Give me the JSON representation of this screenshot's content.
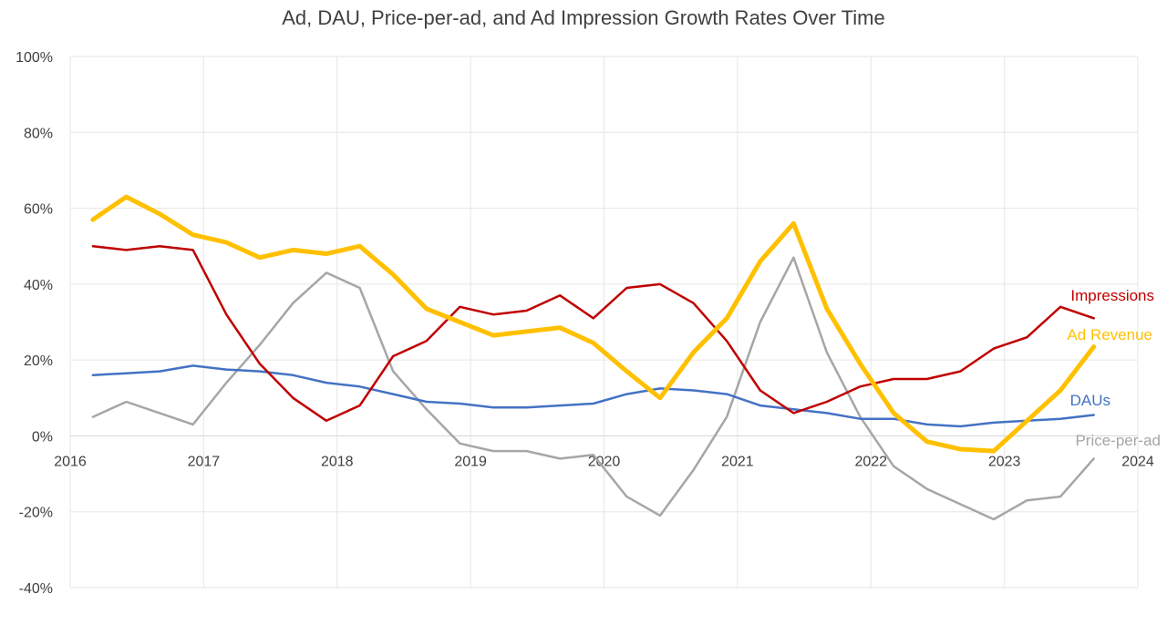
{
  "chart_data": {
    "type": "line",
    "title": "Ad, DAU, Price-per-ad, and Ad Impression Growth Rates Over Time",
    "xlabel": "",
    "ylabel": "",
    "xlim": [
      2016,
      2024
    ],
    "ylim": [
      -40,
      100
    ],
    "y_ticks": [
      -40,
      -20,
      0,
      20,
      40,
      60,
      80,
      100
    ],
    "y_tick_labels": [
      "-40%",
      "-20%",
      "0%",
      "20%",
      "40%",
      "60%",
      "80%",
      "100%"
    ],
    "x_ticks": [
      2016,
      2017,
      2018,
      2019,
      2020,
      2021,
      2022,
      2023,
      2024
    ],
    "x_tick_labels": [
      "2016",
      "2017",
      "2018",
      "2019",
      "2020",
      "2021",
      "2022",
      "2023",
      "2024"
    ],
    "grid": true,
    "legend": "inline labels at right end of each series",
    "x": [
      2016.17,
      2016.42,
      2016.67,
      2016.92,
      2017.17,
      2017.42,
      2017.67,
      2017.92,
      2018.17,
      2018.42,
      2018.67,
      2018.92,
      2019.17,
      2019.42,
      2019.67,
      2019.92,
      2020.17,
      2020.42,
      2020.67,
      2020.92,
      2021.17,
      2021.42,
      2021.67,
      2021.92,
      2022.17,
      2022.42,
      2022.67,
      2022.92,
      2023.17,
      2023.42,
      2023.67
    ],
    "series": [
      {
        "name": "Impressions",
        "color": "#c00000",
        "width": 2.5,
        "values": [
          50,
          49,
          50,
          49,
          32,
          19,
          10,
          4,
          8,
          21,
          25,
          34,
          32,
          33,
          37,
          31,
          39,
          40,
          35,
          25,
          12,
          6,
          9,
          13,
          15,
          15,
          17,
          23,
          26,
          34,
          31
        ]
      },
      {
        "name": "Ad Revenue",
        "color": "#ffc000",
        "width": 5,
        "values": [
          57,
          63,
          58.5,
          53,
          51,
          47,
          49,
          48,
          50,
          42.5,
          33.5,
          30,
          26.5,
          27.5,
          28.5,
          24.5,
          17,
          10,
          22,
          31,
          46,
          56,
          33.5,
          19,
          6,
          -1.5,
          -3.5,
          -4,
          4,
          12,
          23.5
        ]
      },
      {
        "name": "DAUs",
        "color": "#4472c4",
        "width": 2.5,
        "values": [
          16,
          16.5,
          17,
          18.5,
          17.5,
          17,
          16,
          14,
          13,
          11,
          9,
          8.5,
          7.5,
          7.5,
          8,
          8.5,
          11,
          12.5,
          12,
          11,
          8,
          7,
          6,
          4.5,
          4.5,
          3,
          2.5,
          3.5,
          4,
          4.5,
          5.5
        ]
      },
      {
        "name": "Price-per-ad",
        "color": "#a6a6a6",
        "width": 2.5,
        "values": [
          5,
          9,
          6,
          3,
          14,
          24,
          35,
          43,
          39,
          17,
          7,
          -2,
          -4,
          -4,
          -6,
          -5,
          -16,
          -21,
          -9,
          5,
          30,
          47,
          22,
          5,
          -8,
          -14,
          -18,
          -22,
          -17,
          -16,
          -6
        ]
      }
    ],
    "series_label_text": [
      "Impressions",
      "Ad Revenue",
      "DAUs",
      "Price-per-ad"
    ]
  }
}
